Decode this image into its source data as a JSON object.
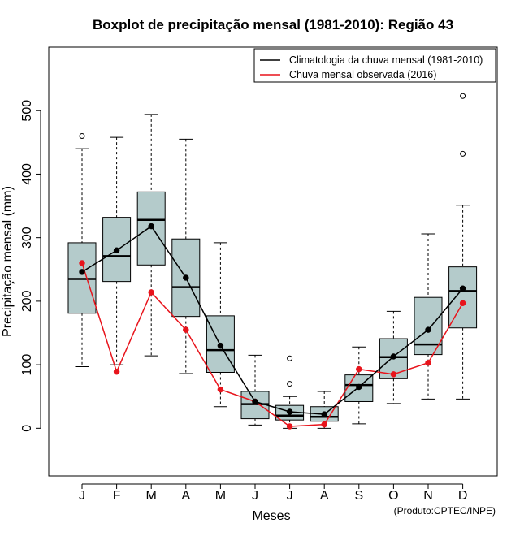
{
  "chart_data": {
    "type": "boxplot",
    "title": "Boxplot de precipitação mensal (1981-2010): Região 43",
    "xlabel": "Meses",
    "ylabel": "Precipitação mensal (mm)",
    "ylim": [
      -75,
      600
    ],
    "yticks": [
      0,
      100,
      200,
      300,
      400,
      500
    ],
    "categories": [
      "J",
      "F",
      "M",
      "A",
      "M",
      "J",
      "J",
      "A",
      "S",
      "O",
      "N",
      "D"
    ],
    "boxes": [
      {
        "min": 97,
        "q1": 181,
        "median": 235,
        "q3": 292,
        "max": 440,
        "outliers": [
          460
        ]
      },
      {
        "min": 100,
        "q1": 231,
        "median": 271,
        "q3": 332,
        "max": 458,
        "outliers": []
      },
      {
        "min": 114,
        "q1": 257,
        "median": 328,
        "q3": 372,
        "max": 494,
        "outliers": []
      },
      {
        "min": 86,
        "q1": 176,
        "median": 222,
        "q3": 298,
        "max": 455,
        "outliers": []
      },
      {
        "min": 34,
        "q1": 88,
        "median": 123,
        "q3": 177,
        "max": 292,
        "outliers": []
      },
      {
        "min": 5,
        "q1": 15,
        "median": 38,
        "q3": 58,
        "max": 115,
        "outliers": []
      },
      {
        "min": 0,
        "q1": 13,
        "median": 20,
        "q3": 36,
        "max": 50,
        "outliers": [
          70,
          110
        ]
      },
      {
        "min": 0,
        "q1": 11,
        "median": 18,
        "q3": 34,
        "max": 58,
        "outliers": []
      },
      {
        "min": 7,
        "q1": 42,
        "median": 68,
        "q3": 84,
        "max": 128,
        "outliers": []
      },
      {
        "min": 39,
        "q1": 78,
        "median": 112,
        "q3": 141,
        "max": 184,
        "outliers": []
      },
      {
        "min": 46,
        "q1": 116,
        "median": 132,
        "q3": 206,
        "max": 306,
        "outliers": []
      },
      {
        "min": 46,
        "q1": 158,
        "median": 216,
        "q3": 254,
        "max": 351,
        "outliers": [
          432,
          523
        ]
      }
    ],
    "series": [
      {
        "name": "Climatologia da chuva mensal (1981-2010)",
        "color": "#000000",
        "values": [
          246,
          280,
          318,
          237,
          130,
          42,
          26,
          22,
          65,
          113,
          155,
          220
        ]
      },
      {
        "name": "Chuva mensal observada (2016)",
        "color": "#e8141c",
        "values": [
          260,
          89,
          214,
          155,
          61,
          42,
          3,
          6,
          93,
          85,
          103,
          197
        ]
      }
    ],
    "box_fill": "#b4cbcb",
    "legend_position": "top-right",
    "credit": "(Produto:CPTEC/INPE)"
  }
}
